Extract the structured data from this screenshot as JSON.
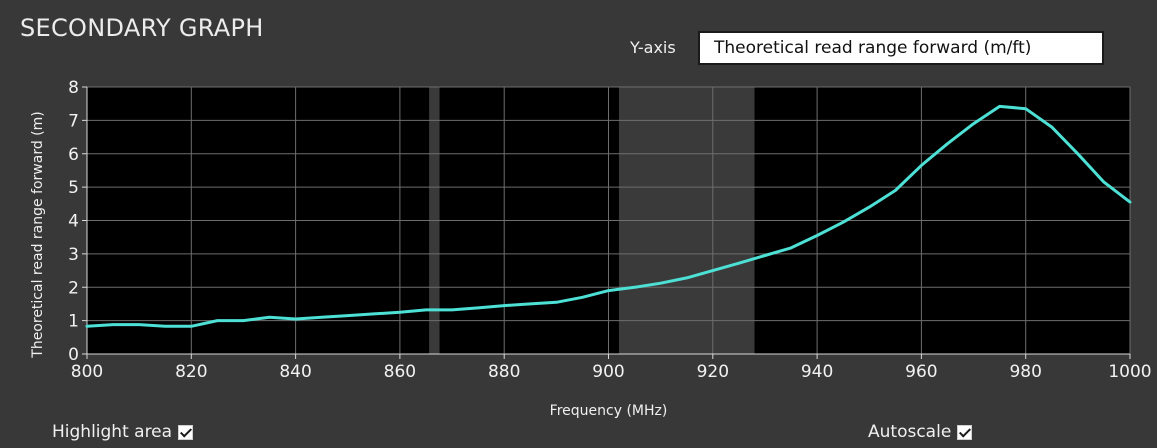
{
  "panel": {
    "title": "SECONDARY GRAPH",
    "yaxis_label": "Y-axis",
    "yaxis_selected": "Theoretical read range forward (m/ft)"
  },
  "controls": {
    "highlight_label": "Highlight area",
    "highlight_checked": true,
    "autoscale_label": "Autoscale",
    "autoscale_checked": true
  },
  "colors": {
    "plot_bg": "#000000",
    "panel_bg": "#383838",
    "line": "#4de0d5",
    "grid": "#6e6e6e",
    "highlight": "#3a3a3a"
  },
  "chart_data": {
    "type": "line",
    "xlabel": "Frequency (MHz)",
    "ylabel": "Theoretical read range forward (m)",
    "xlim": [
      800,
      1000
    ],
    "ylim": [
      0,
      8
    ],
    "xticks": [
      800,
      820,
      840,
      860,
      880,
      900,
      920,
      940,
      960,
      980,
      1000
    ],
    "yticks": [
      0,
      1,
      2,
      3,
      4,
      5,
      6,
      7,
      8
    ],
    "grid": true,
    "highlight_bands": [
      [
        865.6,
        867.6
      ],
      [
        902,
        928
      ]
    ],
    "series": [
      {
        "x": [
          800,
          805,
          810,
          815,
          820,
          825,
          830,
          835,
          840,
          845,
          850,
          855,
          860,
          865,
          870,
          875,
          880,
          885,
          890,
          895,
          900,
          905,
          910,
          915,
          920,
          925,
          930,
          935,
          940,
          945,
          950,
          955,
          960,
          965,
          970,
          975,
          980,
          985,
          990,
          995,
          1000
        ],
        "y": [
          0.83,
          0.88,
          0.88,
          0.83,
          0.83,
          1.0,
          1.0,
          1.1,
          1.05,
          1.1,
          1.15,
          1.2,
          1.25,
          1.32,
          1.32,
          1.38,
          1.45,
          1.5,
          1.55,
          1.7,
          1.9,
          2.0,
          2.12,
          2.28,
          2.5,
          2.72,
          2.95,
          3.18,
          3.55,
          3.95,
          4.4,
          4.9,
          5.65,
          6.3,
          6.9,
          7.42,
          7.35,
          6.8,
          6.0,
          5.15,
          4.55
        ]
      }
    ]
  }
}
